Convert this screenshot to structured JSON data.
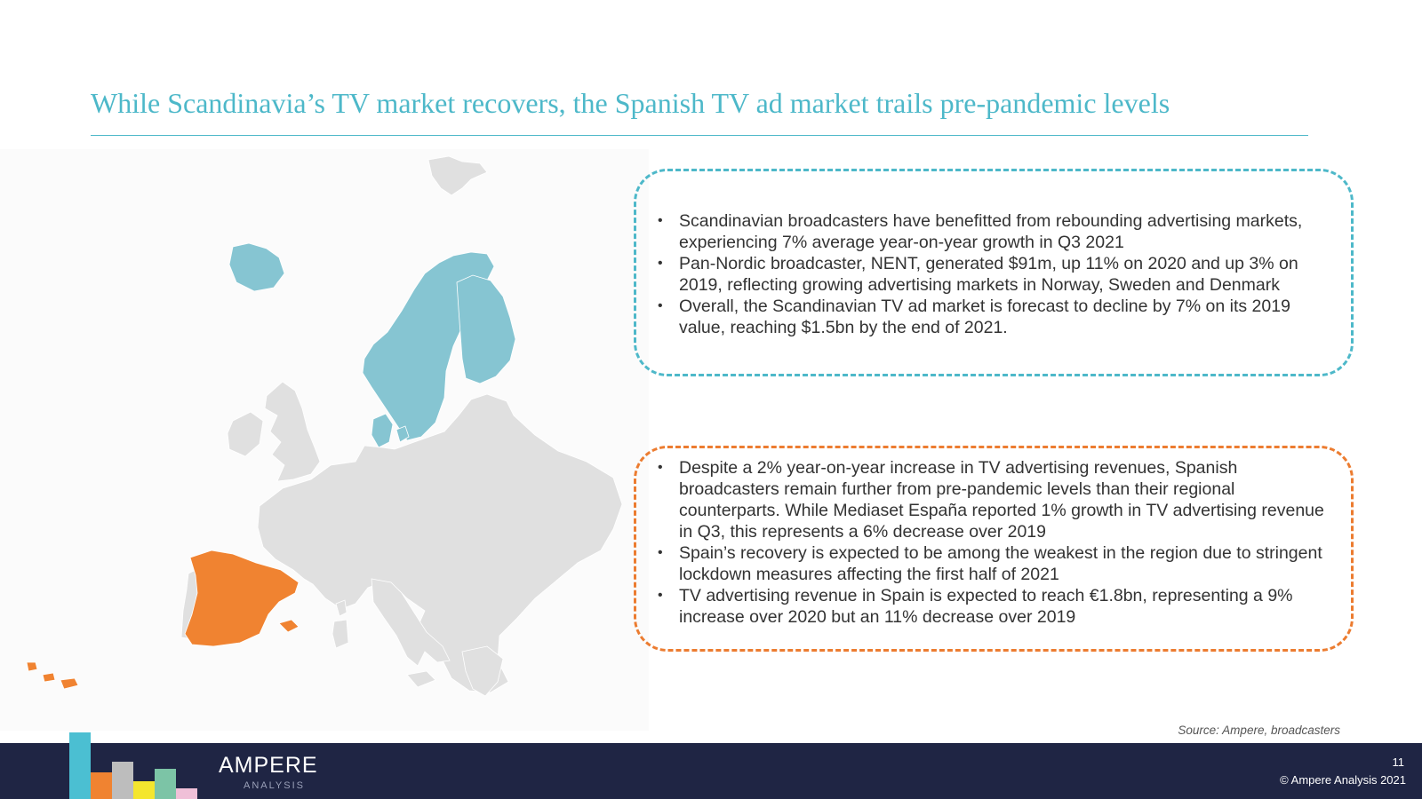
{
  "slide": {
    "title": "While Scandinavia’s TV market recovers, the Spanish TV ad market trails pre-pandemic levels"
  },
  "colors": {
    "accent_teal": "#4db8c9",
    "accent_orange": "#ec7c30",
    "scandinavia_fill": "#86c5d2",
    "spain_fill": "#f08331",
    "other_countries_fill": "#e0e0e0",
    "footer_bg": "#1f2544"
  },
  "map": {
    "highlighted_regions": [
      "Scandinavia",
      "Spain"
    ]
  },
  "scandinavia_box": {
    "bullets": [
      "Scandinavian broadcasters have benefitted from rebounding advertising markets, experiencing 7% average year-on-year growth in Q3 2021",
      "Pan-Nordic broadcaster, NENT, generated $91m, up 11% on 2020 and up 3% on 2019, reflecting growing advertising markets in Norway, Sweden and Denmark",
      "Overall, the Scandinavian TV ad market is forecast to decline by 7% on its 2019 value, reaching $1.5bn by the end of 2021."
    ]
  },
  "spain_box": {
    "bullets": [
      "Despite a 2% year-on-year increase in TV advertising revenues, Spanish broadcasters remain further from pre-pandemic levels than their regional counterparts. While Mediaset España reported 1% growth in TV advertising revenue in Q3, this represents a 6% decrease over 2019",
      "Spain’s recovery is expected to be among the weakest in the region due to stringent lockdown measures affecting the first half of 2021",
      "TV advertising revenue in Spain is expected to reach €1.8bn, representing a 9% increase over 2020 but an 11% decrease over 2019"
    ]
  },
  "source": "Source: Ampere, broadcasters",
  "footer": {
    "logo_main": "AMPERE",
    "logo_sub": "ANALYSIS",
    "page_number": "11",
    "copyright": "© Ampere Analysis 2021",
    "logo_bar_colors": [
      "#4bbfd2",
      "#f08331",
      "#bdbdbd",
      "#f4e62e",
      "#7cc4a6",
      "#f0c0d8"
    ]
  }
}
